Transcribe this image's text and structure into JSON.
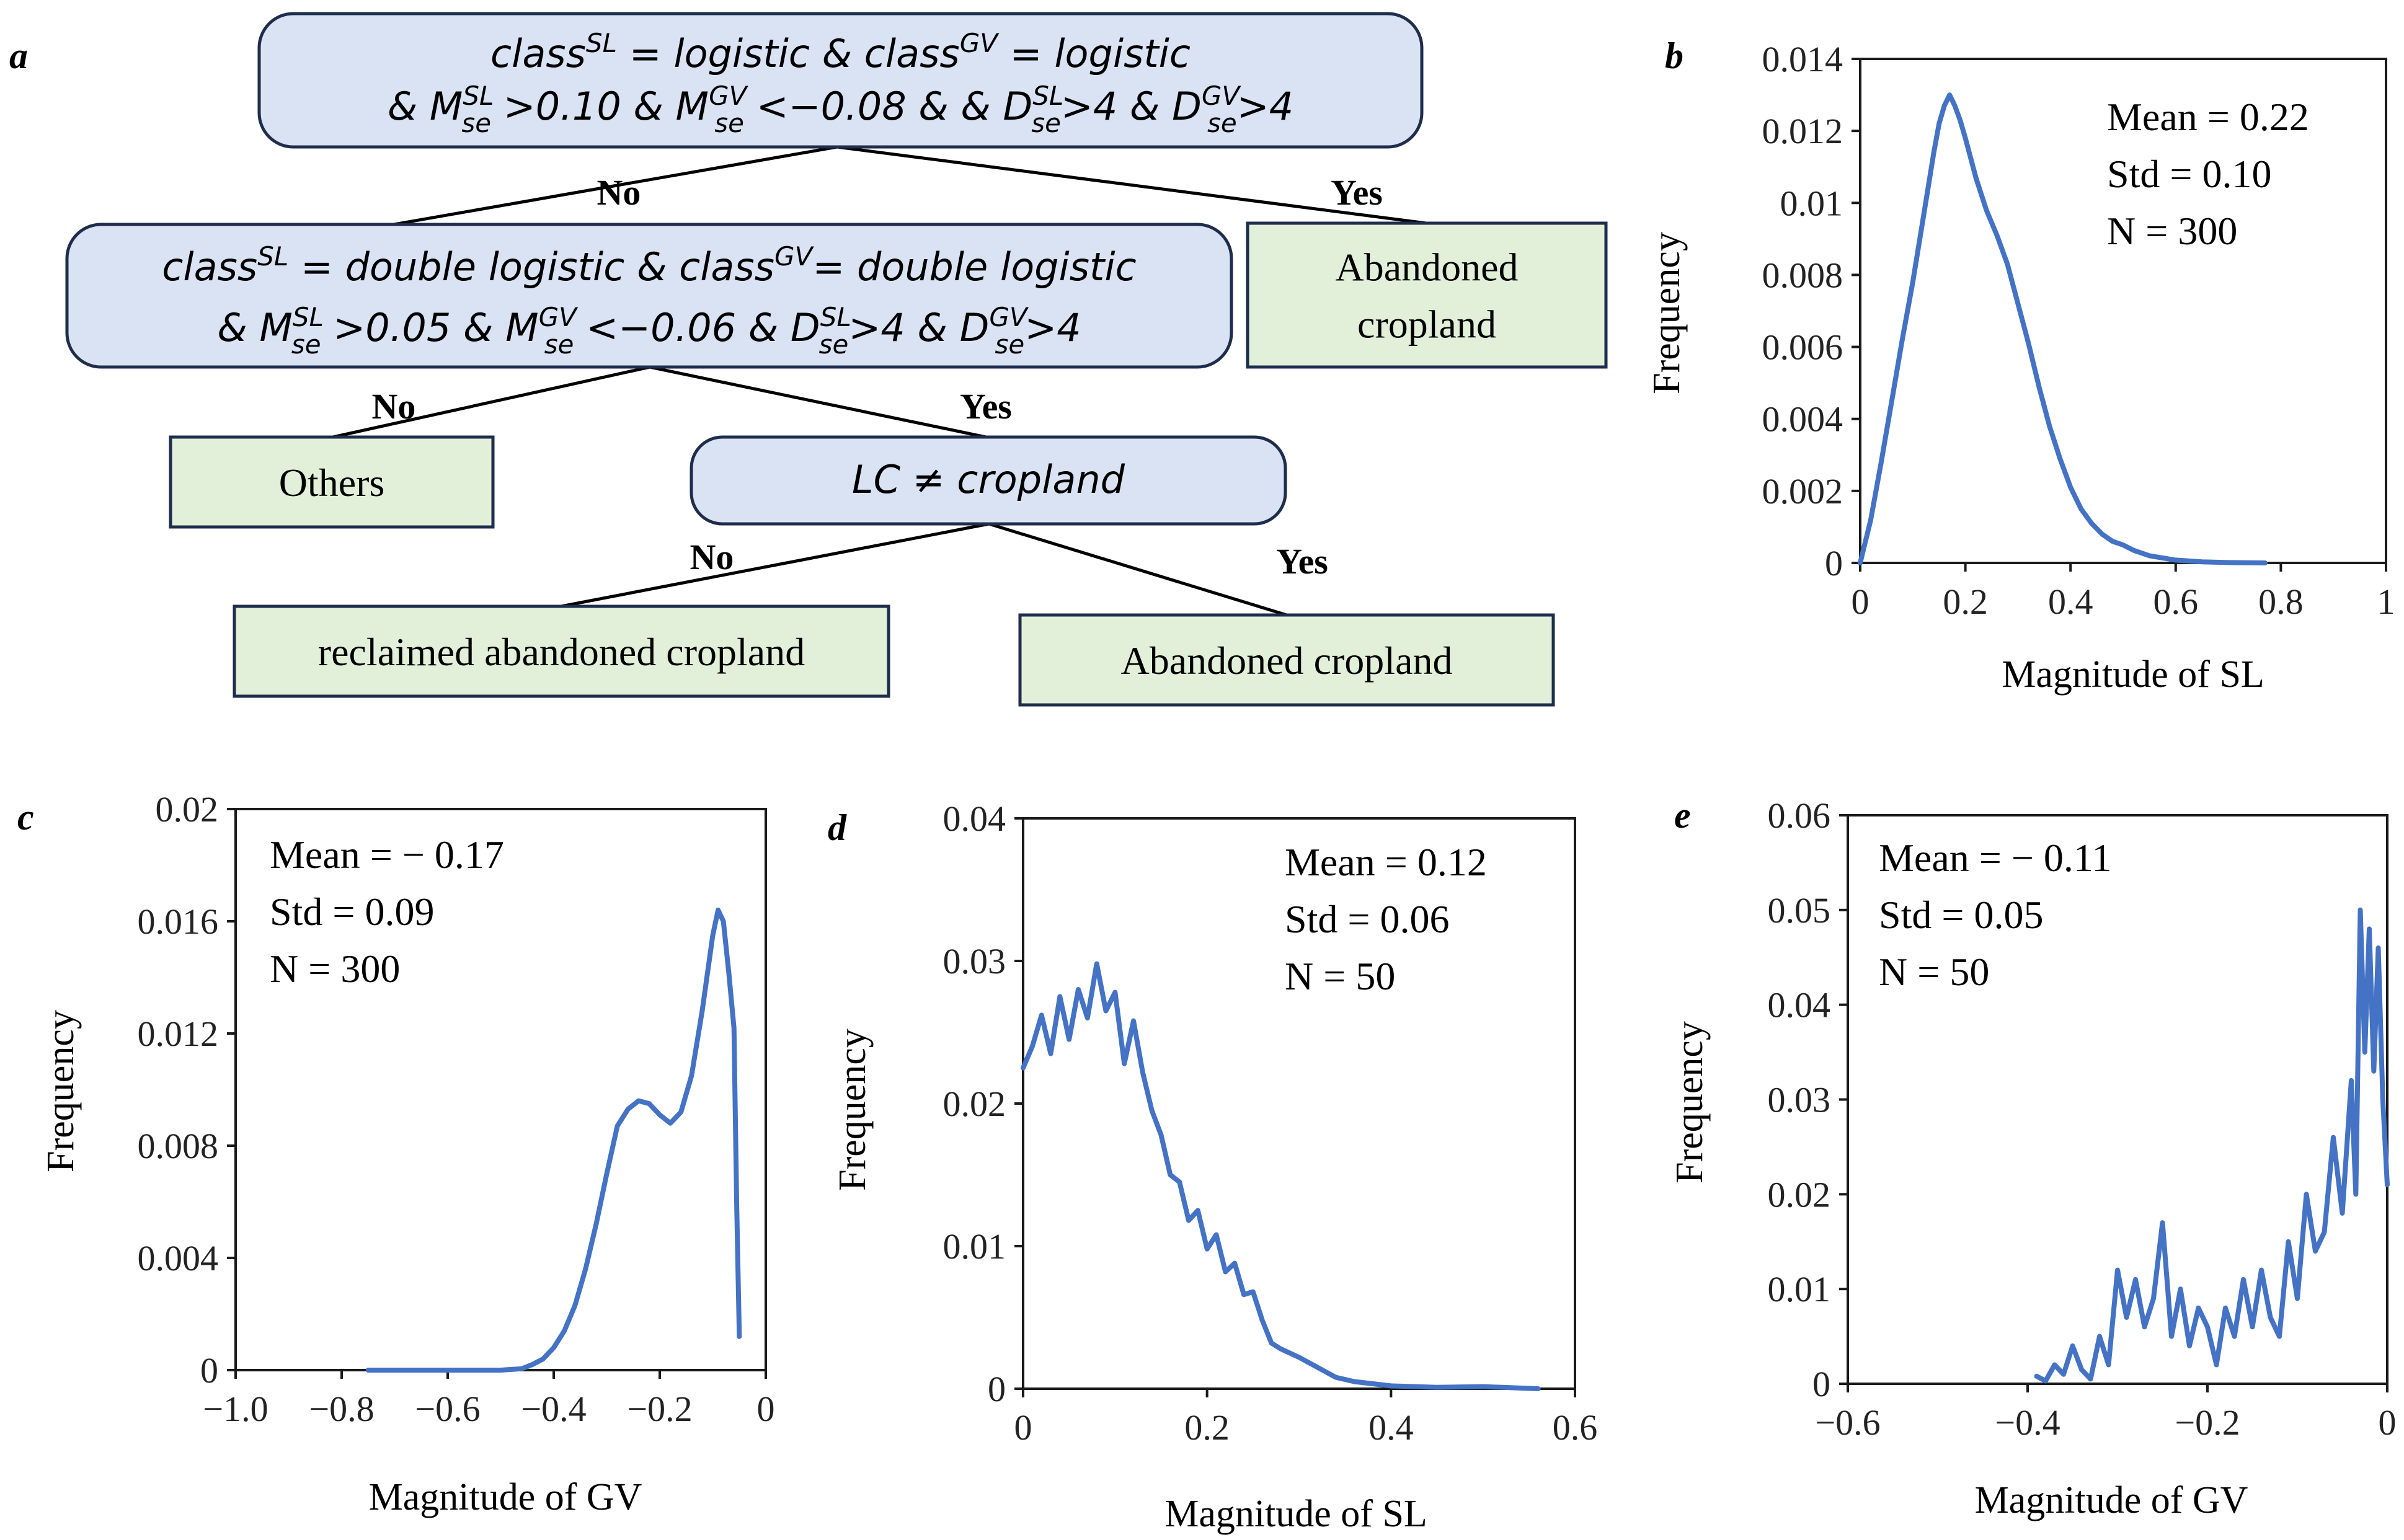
{
  "figure": {
    "panel_labels": [
      "a",
      "b",
      "c",
      "d",
      "e"
    ],
    "colors": {
      "line": "#4472C4",
      "decision_fill": "#DAE3F3",
      "leaf_fill": "#E2F0D9",
      "stroke": "#1F2D4D",
      "axis": "#1a1a1a"
    }
  },
  "tree": {
    "nodes": [
      {
        "id": "n1",
        "kind": "decision",
        "lines": [
          [
            [
              "t",
              "class"
            ],
            [
              "sup",
              "SL"
            ],
            [
              "t",
              " = logistic & class"
            ],
            [
              "sup",
              "GV"
            ],
            [
              "t",
              " = logistic"
            ]
          ],
          [
            [
              "t",
              "& M"
            ],
            [
              "subsup",
              "se",
              "SL"
            ],
            [
              "t",
              " >0.10 & M"
            ],
            [
              "subsup",
              "se",
              "GV"
            ],
            [
              "t",
              " <−0.08 & & D"
            ],
            [
              "subsup",
              "se",
              "SL"
            ],
            [
              "t",
              ">4 & D"
            ],
            [
              "subsup",
              "se",
              "GV"
            ],
            [
              "t",
              ">4"
            ]
          ]
        ]
      },
      {
        "id": "n2",
        "kind": "decision",
        "lines": [
          [
            [
              "t",
              "class"
            ],
            [
              "sup",
              "SL"
            ],
            [
              "t",
              " = double logistic & class"
            ],
            [
              "sup",
              "GV"
            ],
            [
              "t",
              "= double logistic"
            ]
          ],
          [
            [
              "t",
              "& M"
            ],
            [
              "subsup",
              "se",
              "SL"
            ],
            [
              "t",
              " >0.05 & M"
            ],
            [
              "subsup",
              "se",
              "GV"
            ],
            [
              "t",
              " <−0.06 & D"
            ],
            [
              "subsup",
              "se",
              "SL"
            ],
            [
              "t",
              ">4 & D"
            ],
            [
              "subsup",
              "se",
              "GV"
            ],
            [
              "t",
              ">4"
            ]
          ]
        ]
      },
      {
        "id": "leaf1",
        "kind": "leaf",
        "text": [
          "Abandoned",
          "cropland"
        ]
      },
      {
        "id": "leaf2",
        "kind": "leaf",
        "text": [
          "Others"
        ]
      },
      {
        "id": "n3",
        "kind": "decision",
        "lines": [
          [
            [
              "t",
              "LC ≠ cropland"
            ]
          ]
        ]
      },
      {
        "id": "leaf3",
        "kind": "leaf",
        "text": [
          "reclaimed abandoned cropland"
        ]
      },
      {
        "id": "leaf4",
        "kind": "leaf",
        "text": [
          "Abandoned  cropland"
        ]
      }
    ],
    "edges": [
      {
        "from": "n1",
        "to": "n2",
        "label": "No"
      },
      {
        "from": "n1",
        "to": "leaf1",
        "label": "Yes"
      },
      {
        "from": "n2",
        "to": "leaf2",
        "label": "No"
      },
      {
        "from": "n2",
        "to": "n3",
        "label": "Yes"
      },
      {
        "from": "n3",
        "to": "leaf3",
        "label": "No"
      },
      {
        "from": "n3",
        "to": "leaf4",
        "label": "Yes"
      }
    ]
  },
  "chart_data": [
    {
      "panel": "b",
      "type": "line",
      "xlabel": "Magnitude of SL",
      "ylabel": "Frequency",
      "xlim": [
        0,
        1
      ],
      "ylim": [
        0,
        0.014
      ],
      "xticks": [
        0,
        0.2,
        0.4,
        0.6,
        0.8,
        1
      ],
      "xtick_labels": [
        "0",
        "0.2",
        "0.4",
        "0.6",
        "0.8",
        "1"
      ],
      "yticks": [
        0,
        0.002,
        0.004,
        0.006,
        0.008,
        0.01,
        0.012,
        0.014
      ],
      "ytick_labels": [
        "0",
        "0.002",
        "0.004",
        "0.006",
        "0.008",
        "0.01",
        "0.012",
        "0.014"
      ],
      "stats": [
        "Mean  = 0.22",
        "Std = 0.10",
        "N = 300"
      ],
      "stats_position": "top-right",
      "x": [
        0,
        0.02,
        0.04,
        0.06,
        0.08,
        0.1,
        0.12,
        0.14,
        0.15,
        0.16,
        0.17,
        0.18,
        0.19,
        0.2,
        0.22,
        0.24,
        0.26,
        0.28,
        0.3,
        0.32,
        0.34,
        0.36,
        0.38,
        0.4,
        0.42,
        0.44,
        0.46,
        0.48,
        0.5,
        0.52,
        0.55,
        0.6,
        0.65,
        0.7,
        0.77
      ],
      "y": [
        0,
        0.0012,
        0.0028,
        0.0045,
        0.0062,
        0.0078,
        0.0096,
        0.0114,
        0.0122,
        0.0127,
        0.013,
        0.0127,
        0.0123,
        0.0118,
        0.0107,
        0.0098,
        0.0091,
        0.0083,
        0.0072,
        0.0061,
        0.0049,
        0.0038,
        0.0029,
        0.0021,
        0.0015,
        0.0011,
        0.0008,
        0.0006,
        0.0005,
        0.00035,
        0.0002,
        8e-05,
        3e-05,
        1e-05,
        0
      ]
    },
    {
      "panel": "c",
      "type": "line",
      "xlabel": "Magnitude of GV",
      "ylabel": "Frequency",
      "xlim": [
        -1.0,
        0
      ],
      "ylim": [
        0,
        0.02
      ],
      "xticks": [
        -1.0,
        -0.8,
        -0.6,
        -0.4,
        -0.2,
        0
      ],
      "xtick_labels": [
        "−1.0",
        "−0.8",
        "−0.6",
        "−0.4",
        "−0.2",
        "0"
      ],
      "yticks": [
        0,
        0.004,
        0.008,
        0.012,
        0.016,
        0.02
      ],
      "ytick_labels": [
        "0",
        "0.004",
        "0.008",
        "0.012",
        "0.016",
        "0.02"
      ],
      "stats": [
        "Mean  = − 0.17",
        "Std = 0.09",
        "N = 300"
      ],
      "stats_position": "top-left",
      "x": [
        -0.75,
        -0.6,
        -0.5,
        -0.46,
        -0.44,
        -0.42,
        -0.4,
        -0.38,
        -0.36,
        -0.34,
        -0.32,
        -0.3,
        -0.28,
        -0.26,
        -0.24,
        -0.22,
        -0.2,
        -0.18,
        -0.16,
        -0.14,
        -0.12,
        -0.1,
        -0.09,
        -0.08,
        -0.07,
        -0.06,
        -0.055,
        -0.05
      ],
      "y": [
        0,
        0,
        0,
        5e-05,
        0.0002,
        0.0004,
        0.0008,
        0.0014,
        0.0023,
        0.0036,
        0.0052,
        0.007,
        0.0087,
        0.0093,
        0.0096,
        0.0095,
        0.0091,
        0.0088,
        0.0092,
        0.0105,
        0.0128,
        0.0155,
        0.0164,
        0.016,
        0.0142,
        0.0122,
        0.006,
        0.0012
      ]
    },
    {
      "panel": "d",
      "type": "line",
      "xlabel": "Magnitude of SL",
      "ylabel": "Frequency",
      "xlim": [
        0,
        0.6
      ],
      "ylim": [
        0,
        0.04
      ],
      "xticks": [
        0,
        0.2,
        0.4,
        0.6
      ],
      "xtick_labels": [
        "0",
        "0.2",
        "0.4",
        "0.6"
      ],
      "yticks": [
        0,
        0.01,
        0.02,
        0.03,
        0.04
      ],
      "ytick_labels": [
        "0",
        "0.01",
        "0.02",
        "0.03",
        "0.04"
      ],
      "stats": [
        "Mean  = 0.12",
        "Std = 0.06",
        "N = 50"
      ],
      "stats_position": "top-right",
      "x": [
        0,
        0.01,
        0.02,
        0.03,
        0.04,
        0.05,
        0.06,
        0.07,
        0.08,
        0.09,
        0.1,
        0.11,
        0.12,
        0.13,
        0.14,
        0.15,
        0.16,
        0.17,
        0.18,
        0.19,
        0.2,
        0.21,
        0.22,
        0.23,
        0.24,
        0.25,
        0.26,
        0.27,
        0.28,
        0.3,
        0.32,
        0.34,
        0.36,
        0.4,
        0.45,
        0.5,
        0.56
      ],
      "y": [
        0.0225,
        0.024,
        0.0262,
        0.0235,
        0.0275,
        0.0245,
        0.028,
        0.026,
        0.0298,
        0.0265,
        0.0278,
        0.0228,
        0.0258,
        0.0222,
        0.0195,
        0.0178,
        0.015,
        0.0145,
        0.0118,
        0.0125,
        0.0098,
        0.0108,
        0.0082,
        0.0088,
        0.0066,
        0.0068,
        0.0048,
        0.0032,
        0.0028,
        0.0022,
        0.0015,
        0.0008,
        0.0005,
        0.0002,
        0.0001,
        0.00015,
        0
      ]
    },
    {
      "panel": "e",
      "type": "line",
      "xlabel": "Magnitude of GV",
      "ylabel": "Frequency",
      "xlim": [
        -0.6,
        0
      ],
      "ylim": [
        0,
        0.06
      ],
      "xticks": [
        -0.6,
        -0.4,
        -0.2,
        0
      ],
      "xtick_labels": [
        "−0.6",
        "−0.4",
        "−0.2",
        "0"
      ],
      "yticks": [
        0,
        0.01,
        0.02,
        0.03,
        0.04,
        0.05,
        0.06
      ],
      "ytick_labels": [
        "0",
        "0.01",
        "0.02",
        "0.03",
        "0.04",
        "0.05",
        "0.06"
      ],
      "stats": [
        "Mean  = − 0.11",
        "Std = 0.05",
        "N = 50"
      ],
      "stats_position": "top-left",
      "x": [
        -0.39,
        -0.38,
        -0.37,
        -0.36,
        -0.35,
        -0.34,
        -0.33,
        -0.32,
        -0.31,
        -0.3,
        -0.29,
        -0.28,
        -0.27,
        -0.26,
        -0.25,
        -0.24,
        -0.23,
        -0.22,
        -0.21,
        -0.2,
        -0.19,
        -0.18,
        -0.17,
        -0.16,
        -0.15,
        -0.14,
        -0.13,
        -0.12,
        -0.11,
        -0.1,
        -0.09,
        -0.08,
        -0.07,
        -0.06,
        -0.05,
        -0.04,
        -0.035,
        -0.03,
        -0.025,
        -0.02,
        -0.015,
        -0.01,
        -0.005,
        0
      ],
      "y": [
        0.0008,
        0.0003,
        0.002,
        0.001,
        0.004,
        0.0015,
        0.0005,
        0.005,
        0.002,
        0.012,
        0.007,
        0.011,
        0.006,
        0.009,
        0.017,
        0.005,
        0.01,
        0.004,
        0.008,
        0.006,
        0.002,
        0.008,
        0.005,
        0.011,
        0.006,
        0.012,
        0.007,
        0.005,
        0.015,
        0.009,
        0.02,
        0.014,
        0.016,
        0.026,
        0.018,
        0.032,
        0.02,
        0.05,
        0.035,
        0.048,
        0.033,
        0.046,
        0.03,
        0.021
      ]
    }
  ]
}
